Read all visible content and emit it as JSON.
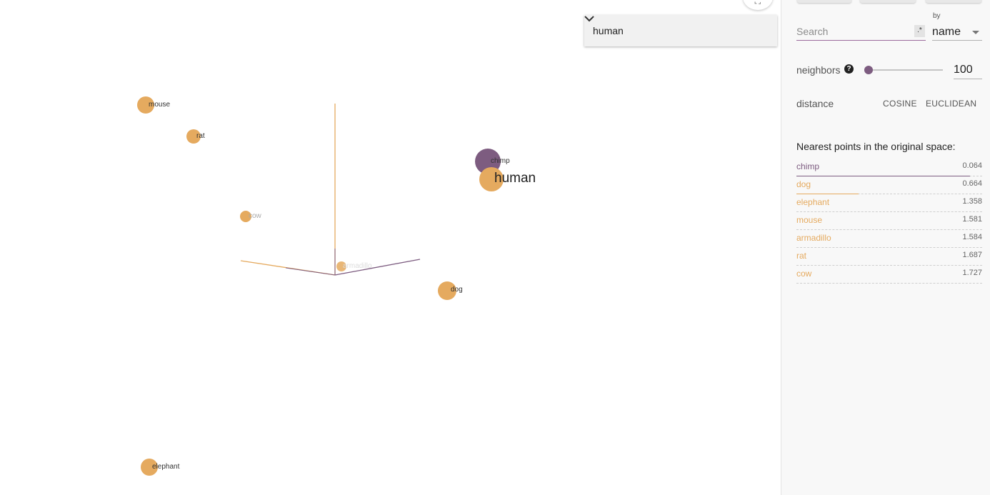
{
  "colors": {
    "accent": "#7d5c80",
    "point": "#e5aa5f",
    "selected": "#7d5c80"
  },
  "scene": {
    "points": [
      {
        "name": "mouse",
        "label": "mouse"
      },
      {
        "name": "rat",
        "label": "rat"
      },
      {
        "name": "cow",
        "label": "cow"
      },
      {
        "name": "armadillo",
        "label": "armadillo"
      },
      {
        "name": "chimp",
        "label": "chimp"
      },
      {
        "name": "human",
        "label": "human"
      },
      {
        "name": "dog",
        "label": "dog"
      },
      {
        "name": "elephant",
        "label": "elephant"
      }
    ],
    "fullscreen_icon": "fullscreen-icon"
  },
  "point_select": {
    "value": "human",
    "icon": "chevron-down-icon"
  },
  "panel": {
    "search": {
      "placeholder": "Search",
      "regex_label": ".*"
    },
    "by": {
      "label": "by",
      "value": "name"
    },
    "neighbors": {
      "label": "neighbors",
      "help_icon": "?",
      "value": "100",
      "slider_fraction": 0.03
    },
    "distance": {
      "label": "distance",
      "cosine": "COSINE",
      "euclidean": "EUCLIDEAN"
    },
    "nearest": {
      "title": "Nearest points in the original space:",
      "items": [
        {
          "name": "chimp",
          "value": "0.064",
          "bar_fraction": 1.0,
          "color": "#7d5c80"
        },
        {
          "name": "dog",
          "value": "0.664",
          "bar_fraction": 0.36,
          "color": "#e5aa5f"
        },
        {
          "name": "elephant",
          "value": "1.358",
          "bar_fraction": 0.0,
          "color": "#e5aa5f"
        },
        {
          "name": "mouse",
          "value": "1.581",
          "bar_fraction": 0.0,
          "color": "#e5aa5f"
        },
        {
          "name": "armadillo",
          "value": "1.584",
          "bar_fraction": 0.0,
          "color": "#e5aa5f"
        },
        {
          "name": "rat",
          "value": "1.687",
          "bar_fraction": 0.0,
          "color": "#e5aa5f"
        },
        {
          "name": "cow",
          "value": "1.727",
          "bar_fraction": 0.0,
          "color": "#e5aa5f"
        }
      ]
    }
  }
}
